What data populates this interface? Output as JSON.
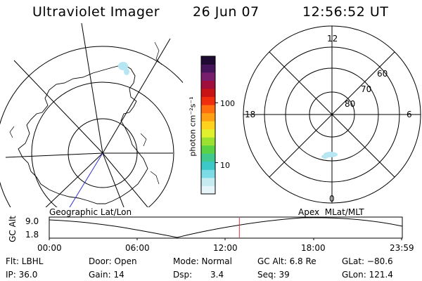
{
  "header": {
    "instrument": "Ultraviolet Imager",
    "date": "26 Jun 07",
    "time": "12:56:52 UT"
  },
  "left_panel": {
    "label": "Geographic Lat/Lon"
  },
  "right_panel": {
    "label": "Apex  MLat/MLT",
    "mlt_labels": [
      "12",
      "18",
      "6",
      "0"
    ],
    "mlat_labels": [
      "60",
      "70",
      "80"
    ]
  },
  "colorbar": {
    "unit_label": "photon cm⁻²s⁻¹",
    "ticks": [
      "100",
      "10"
    ],
    "colors": [
      "#e6f5fa",
      "#c6ecf2",
      "#7ddbe6",
      "#3cc8c8",
      "#41c88c",
      "#5ad246",
      "#9be132",
      "#e1f02d",
      "#ffd21e",
      "#ffa014",
      "#ff6e0f",
      "#f02d0f",
      "#c81414",
      "#a00f3c",
      "#781e6e",
      "#46145a",
      "#1e0a32"
    ],
    "scale_min": 3,
    "scale_max": 600,
    "scale": "log"
  },
  "timeline": {
    "ylabel": "GC Alt",
    "y_ticks": [
      "9.0",
      "1.8"
    ],
    "ylim": [
      1.8,
      9.0
    ],
    "x_ticks": [
      "00:00",
      "06:00",
      "12:00",
      "18:00",
      "23:59"
    ],
    "current_time_hours": 12.95,
    "marker_color": "#e0303a"
  },
  "info_row1": {
    "filter": "Flt: LBHL",
    "door": "Door: Open",
    "mode": "Mode: Normal",
    "gc_alt": "GC Alt: 6.8 Re",
    "glat": "GLat: −80.6"
  },
  "info_row2": {
    "ip": "IP: 36.0",
    "gain": "Gain: 14",
    "dsp_label": "Dsp:",
    "dsp_value": "3.4",
    "seq": "Seq: 39",
    "glon": "GLon: 121.4"
  }
}
